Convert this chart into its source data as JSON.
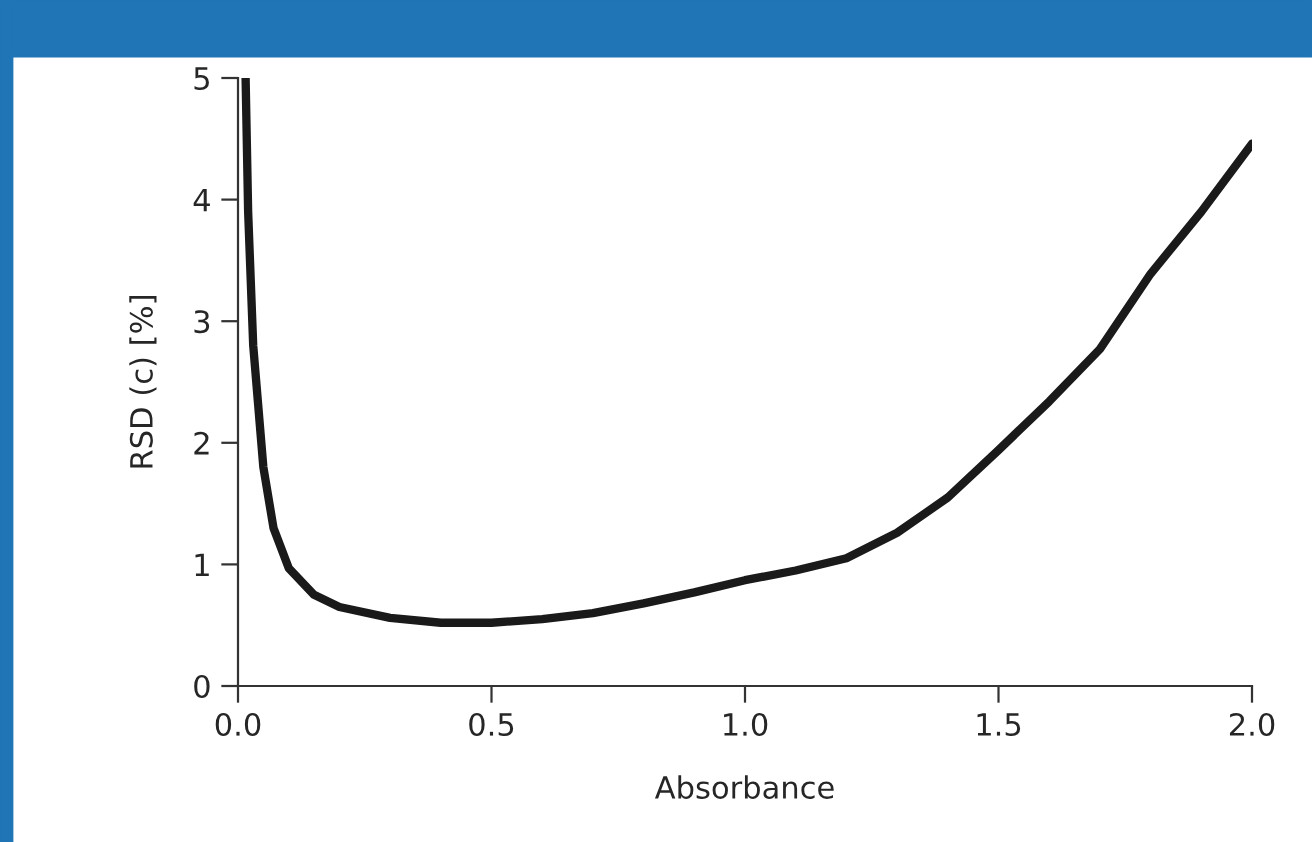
{
  "chart_data": {
    "type": "line",
    "xlabel": "Absorbance",
    "ylabel": "RSD (c) [%]",
    "xlim": [
      0,
      2
    ],
    "ylim": [
      0,
      5
    ],
    "xticks": [
      {
        "value": 0,
        "label": "0.0"
      },
      0.5,
      {
        "value": 1,
        "label": "1.0"
      },
      1.5,
      {
        "value": 2,
        "label": "2.0"
      }
    ],
    "yticks": [
      0,
      1,
      2,
      3,
      4,
      5
    ],
    "grid": false,
    "series": [
      {
        "color": "#1a1a1a",
        "x": [
          0.015,
          0.02,
          0.03,
          0.05,
          0.07,
          0.1,
          0.15,
          0.2,
          0.3,
          0.4,
          0.5,
          0.6,
          0.7,
          0.8,
          0.9,
          1.0,
          1.1,
          1.2,
          1.3,
          1.4,
          1.5,
          1.6,
          1.7,
          1.8,
          1.9,
          2.0
        ],
        "values": [
          5,
          3.9,
          2.8,
          1.8,
          1.3,
          0.97,
          0.75,
          0.65,
          0.56,
          0.52,
          0.52,
          0.55,
          0.6,
          0.68,
          0.77,
          0.87,
          0.95,
          1.05,
          1.26,
          1.55,
          1.94,
          2.34,
          2.77,
          3.39,
          3.9,
          4.46
        ]
      }
    ]
  }
}
